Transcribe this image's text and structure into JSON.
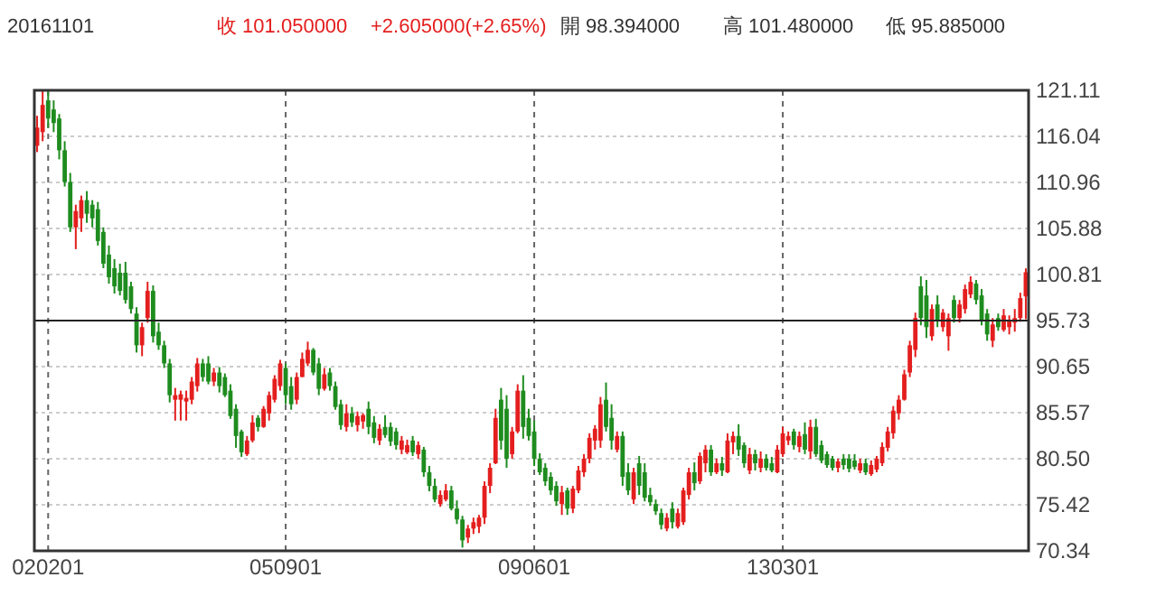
{
  "chart_data": {
    "type": "candlestick",
    "title": "20161101",
    "annotations": [
      "收 101.050000",
      "+2.605000(+2.65%)",
      "開 98.394000",
      "高 101.480000",
      "低 95.885000"
    ],
    "categories": [
      null,
      null,
      "020201",
      null,
      null,
      null,
      null,
      null,
      null,
      null,
      null,
      null,
      null,
      null,
      null,
      null,
      null,
      null,
      null,
      null,
      null,
      null,
      null,
      null,
      null,
      null,
      null,
      null,
      null,
      null,
      null,
      null,
      null,
      null,
      null,
      null,
      null,
      null,
      null,
      null,
      null,
      null,
      null,
      null,
      null,
      "050901",
      null,
      null,
      null,
      null,
      null,
      null,
      null,
      null,
      null,
      null,
      null,
      null,
      null,
      null,
      null,
      null,
      null,
      null,
      null,
      null,
      null,
      null,
      null,
      null,
      null,
      null,
      null,
      null,
      null,
      null,
      null,
      null,
      null,
      null,
      null,
      null,
      null,
      null,
      null,
      null,
      null,
      null,
      null,
      null,
      "090601",
      null,
      null,
      null,
      null,
      null,
      null,
      null,
      null,
      null,
      null,
      null,
      null,
      null,
      null,
      null,
      null,
      null,
      null,
      null,
      null,
      null,
      null,
      null,
      null,
      null,
      null,
      null,
      null,
      null,
      null,
      null,
      null,
      null,
      null,
      null,
      null,
      null,
      null,
      null,
      null,
      null,
      null,
      null,
      null,
      "130301",
      null,
      null,
      null,
      null,
      null,
      null,
      null,
      null,
      null,
      null,
      null,
      null,
      null,
      null,
      null,
      null,
      null,
      null,
      null,
      null,
      null,
      null,
      null,
      null,
      null,
      null,
      null,
      null,
      null,
      null,
      null,
      null,
      null,
      null,
      null,
      null,
      null,
      null,
      null,
      null,
      null,
      null,
      null,
      null
    ],
    "ohlc": [
      [
        115,
        118.3,
        114.3,
        117
      ],
      [
        116.5,
        121,
        115.5,
        119.5
      ],
      [
        120,
        121,
        117,
        118
      ],
      [
        119,
        120,
        116.5,
        117.5
      ],
      [
        118,
        118.5,
        113.5,
        114.5
      ],
      [
        114.5,
        115.5,
        110.5,
        111
      ],
      [
        111,
        112,
        105.5,
        106
      ],
      [
        106,
        108.5,
        103.6,
        107.8
      ],
      [
        107,
        109.5,
        105.5,
        109
      ],
      [
        109,
        110,
        106.5,
        107.5
      ],
      [
        108.5,
        109,
        106,
        107
      ],
      [
        108,
        108.8,
        104,
        104.5
      ],
      [
        105.5,
        106,
        101.5,
        102
      ],
      [
        103,
        104,
        99.8,
        100.5
      ],
      [
        101.5,
        102.5,
        98.7,
        99.5
      ],
      [
        101,
        102,
        98.5,
        99
      ],
      [
        101,
        102.2,
        97.6,
        98
      ],
      [
        99.5,
        100,
        96.5,
        97
      ],
      [
        96.5,
        97.2,
        92.2,
        93
      ],
      [
        93,
        95.5,
        91.8,
        95
      ],
      [
        96,
        100,
        95.5,
        99
      ],
      [
        99,
        99.6,
        93.3,
        94
      ],
      [
        94.5,
        95.5,
        92.5,
        93
      ],
      [
        93,
        93.5,
        90.5,
        91
      ],
      [
        91,
        91.5,
        86.7,
        87.5
      ],
      [
        87,
        88.3,
        84.7,
        87.5
      ],
      [
        87,
        88,
        84.7,
        87.6
      ],
      [
        86.8,
        88,
        84.7,
        87.2
      ],
      [
        87,
        89.5,
        86.5,
        89
      ],
      [
        88.5,
        91.6,
        87.9,
        91
      ],
      [
        91,
        91.5,
        89,
        89.5
      ],
      [
        91,
        91.8,
        88.7,
        89
      ],
      [
        89,
        90.5,
        88.5,
        90
      ],
      [
        90,
        90.6,
        87.8,
        88.5
      ],
      [
        89.5,
        89.9,
        87.3,
        87.5
      ],
      [
        88,
        88.7,
        84.9,
        85.2
      ],
      [
        86,
        86.5,
        81.7,
        83
      ],
      [
        83.5,
        83.7,
        80.7,
        81.2
      ],
      [
        81,
        83,
        80.8,
        82.5
      ],
      [
        82.5,
        85.3,
        82.3,
        84.5
      ],
      [
        85,
        85.3,
        83.5,
        84
      ],
      [
        84,
        86.3,
        83.9,
        86
      ],
      [
        85.5,
        87.9,
        84.7,
        87.5
      ],
      [
        87,
        89.7,
        86.7,
        89.3
      ],
      [
        88.5,
        91.4,
        88,
        91
      ],
      [
        90.5,
        91,
        86.5,
        87.5
      ],
      [
        88.5,
        89.5,
        85.9,
        86.5
      ],
      [
        87,
        90,
        86.5,
        89.5
      ],
      [
        89.5,
        92.2,
        89.5,
        91.5
      ],
      [
        91,
        93.4,
        90.7,
        92.5
      ],
      [
        92.5,
        92.7,
        89.7,
        90
      ],
      [
        91,
        91.6,
        87.5,
        88.2
      ],
      [
        88.2,
        90.5,
        88,
        89.8
      ],
      [
        90,
        90.5,
        88,
        88.5
      ],
      [
        88.5,
        89,
        85.9,
        86.2
      ],
      [
        86.5,
        87,
        83.7,
        84.2
      ],
      [
        84,
        86.5,
        83.5,
        85.5
      ],
      [
        85.5,
        86.2,
        84,
        84.5
      ],
      [
        84.2,
        85.7,
        83.5,
        85.2
      ],
      [
        84.6,
        85.5,
        83.8,
        85.3
      ],
      [
        86,
        86.8,
        83.2,
        84
      ],
      [
        84.5,
        85.2,
        82.2,
        82.8
      ],
      [
        82.5,
        84.3,
        82,
        83.8
      ],
      [
        84,
        85.3,
        82.8,
        83.1
      ],
      [
        84,
        84.5,
        81.9,
        82.4
      ],
      [
        83.5,
        83.9,
        81.5,
        82
      ],
      [
        81.5,
        83,
        81,
        82.5
      ],
      [
        81.2,
        82.6,
        81,
        82
      ],
      [
        82.5,
        83,
        80.8,
        81.2
      ],
      [
        81,
        82.4,
        80.5,
        82
      ],
      [
        81.5,
        81.8,
        78.5,
        79
      ],
      [
        79,
        79.7,
        76.9,
        77.5
      ],
      [
        77.5,
        78.3,
        75.7,
        76
      ],
      [
        75.5,
        77,
        75.2,
        76.5
      ],
      [
        76,
        77.7,
        75.8,
        77
      ],
      [
        77,
        77.5,
        74.8,
        75
      ],
      [
        75,
        75.9,
        73.3,
        73.8
      ],
      [
        73.8,
        74.2,
        70.7,
        71.5
      ],
      [
        71.8,
        73.2,
        71.2,
        72.8
      ],
      [
        72.8,
        74,
        72.2,
        73.5
      ],
      [
        73,
        74.3,
        72.3,
        74
      ],
      [
        74,
        78,
        73.3,
        77.5
      ],
      [
        77.5,
        80,
        76.7,
        79.5
      ],
      [
        80,
        86,
        79.9,
        85
      ],
      [
        87,
        88.3,
        81.5,
        82.5
      ],
      [
        86,
        87.5,
        79.5,
        80.5
      ],
      [
        81,
        84,
        80.5,
        83.5
      ],
      [
        83.5,
        88.7,
        83.3,
        88
      ],
      [
        88,
        89.7,
        82.7,
        84
      ],
      [
        85,
        86,
        82.5,
        83
      ],
      [
        83.5,
        84.7,
        79.7,
        80.5
      ],
      [
        80.5,
        81.1,
        78.7,
        79
      ],
      [
        79.5,
        80,
        77.5,
        78
      ],
      [
        78.5,
        79,
        76.5,
        77
      ],
      [
        77.5,
        78,
        75.3,
        75.8
      ],
      [
        75.5,
        77.5,
        74.3,
        76.8
      ],
      [
        77,
        77.3,
        74.3,
        75
      ],
      [
        75,
        77.5,
        74.5,
        77.2
      ],
      [
        77,
        79.7,
        76.7,
        79.2
      ],
      [
        79,
        81,
        78.5,
        80.5
      ],
      [
        80.5,
        83.3,
        80,
        82.8
      ],
      [
        82.5,
        84.2,
        81.5,
        83.8
      ],
      [
        82.5,
        87.3,
        81.7,
        86.5
      ],
      [
        87,
        88.9,
        83.5,
        84
      ],
      [
        85,
        86.5,
        81.5,
        82.5
      ],
      [
        81.5,
        83.5,
        81.2,
        83
      ],
      [
        83,
        83.5,
        77.5,
        78.5
      ],
      [
        79,
        80,
        76.5,
        77
      ],
      [
        76,
        79.5,
        75.5,
        79
      ],
      [
        80,
        80.8,
        76.5,
        77.5
      ],
      [
        79,
        80,
        75.8,
        76.2
      ],
      [
        76.5,
        77.3,
        75.3,
        75.7
      ],
      [
        75.5,
        76,
        74.3,
        74.7
      ],
      [
        74.5,
        75,
        72.7,
        73.2
      ],
      [
        72.8,
        74.5,
        72.5,
        74
      ],
      [
        75,
        75.7,
        72.8,
        73.5
      ],
      [
        73,
        75,
        72.8,
        74.5
      ],
      [
        73.5,
        77.3,
        73.2,
        77
      ],
      [
        76.5,
        79.5,
        76,
        79
      ],
      [
        79,
        80.1,
        77,
        77.8
      ],
      [
        78,
        81.2,
        77.7,
        80.8
      ],
      [
        80,
        82,
        79,
        81.5
      ],
      [
        81.5,
        82,
        78.6,
        79
      ],
      [
        79,
        80.5,
        78.8,
        80
      ],
      [
        80,
        80.7,
        78.6,
        79.2
      ],
      [
        79,
        83.3,
        78.9,
        82.5
      ],
      [
        82.3,
        83.5,
        81,
        83
      ],
      [
        83,
        84.3,
        80.8,
        81.5
      ],
      [
        82,
        82.3,
        79.5,
        80
      ],
      [
        79.2,
        81.7,
        78.8,
        81
      ],
      [
        81,
        81.5,
        79.2,
        80
      ],
      [
        79.5,
        81.3,
        79,
        80.5
      ],
      [
        80.5,
        81,
        79.2,
        79.5
      ],
      [
        80,
        80.7,
        79,
        79.2
      ],
      [
        79,
        82,
        78.9,
        81.5
      ],
      [
        81,
        84,
        80.7,
        83.3
      ],
      [
        82.5,
        83.5,
        82,
        83
      ],
      [
        83.5,
        83.8,
        81.5,
        82
      ],
      [
        81.8,
        83.5,
        81.2,
        83
      ],
      [
        83.2,
        84.5,
        81,
        81.5
      ],
      [
        81.3,
        84.8,
        80.5,
        84
      ],
      [
        84,
        84.9,
        80.7,
        81
      ],
      [
        82,
        82.5,
        80,
        80.3
      ],
      [
        81,
        81.3,
        79.5,
        79.8
      ],
      [
        80.5,
        80.8,
        79.2,
        79.5
      ],
      [
        79.5,
        80.5,
        79,
        80.2
      ],
      [
        80.5,
        81,
        79.3,
        79.8
      ],
      [
        80.5,
        81,
        79,
        79.4
      ],
      [
        80.3,
        81,
        79.3,
        79.6
      ],
      [
        79.2,
        80.5,
        78.9,
        80
      ],
      [
        80,
        80.5,
        78.7,
        79
      ],
      [
        78.8,
        80.3,
        78.6,
        79.8
      ],
      [
        79.3,
        80.8,
        79,
        80.5
      ],
      [
        80,
        82.3,
        79.7,
        81.8
      ],
      [
        81.7,
        84,
        81.3,
        83.5
      ],
      [
        83.3,
        86.3,
        82.7,
        85.8
      ],
      [
        85.5,
        87.5,
        84.8,
        87
      ],
      [
        87,
        90.3,
        86.9,
        89.8
      ],
      [
        90,
        93.5,
        89.5,
        93
      ],
      [
        92.5,
        96.6,
        91.7,
        96
      ],
      [
        99.5,
        100.6,
        95.2,
        96
      ],
      [
        98.5,
        100.2,
        93.8,
        95
      ],
      [
        94,
        97.5,
        93.5,
        97
      ],
      [
        97.5,
        98.5,
        95,
        95.8
      ],
      [
        95,
        97,
        94.5,
        96.6
      ],
      [
        94,
        96.5,
        92.4,
        96
      ],
      [
        98,
        98.5,
        95.5,
        96
      ],
      [
        96,
        98,
        95.5,
        97.5
      ],
      [
        97,
        99.7,
        96.5,
        99.2
      ],
      [
        98.6,
        100.6,
        98.2,
        100
      ],
      [
        99.8,
        100.2,
        97.5,
        98
      ],
      [
        98.5,
        99.2,
        95.2,
        95.8
      ],
      [
        96.5,
        97,
        93.5,
        94.2
      ],
      [
        93.5,
        96,
        92.8,
        95.3
      ],
      [
        96,
        96.5,
        94.6,
        95
      ],
      [
        94.7,
        97,
        94.5,
        96.3
      ],
      [
        95,
        96.3,
        94.2,
        95.8
      ],
      [
        95.5,
        97,
        94.5,
        96
      ],
      [
        96,
        98.8,
        95.6,
        98.2
      ],
      [
        98.394,
        101.48,
        95.885,
        101.05
      ]
    ],
    "ylim": [
      70.34,
      121.11
    ],
    "yticks": [
      70.34,
      75.42,
      {
        "value": 80.5,
        "label": "80.50"
      },
      85.57,
      90.65,
      95.73,
      100.81,
      105.88,
      110.96,
      116.04,
      121.11
    ],
    "ref_lines": [
      {
        "axis": "y",
        "value": 95.73,
        "color": "#222222"
      }
    ],
    "grid": true
  }
}
